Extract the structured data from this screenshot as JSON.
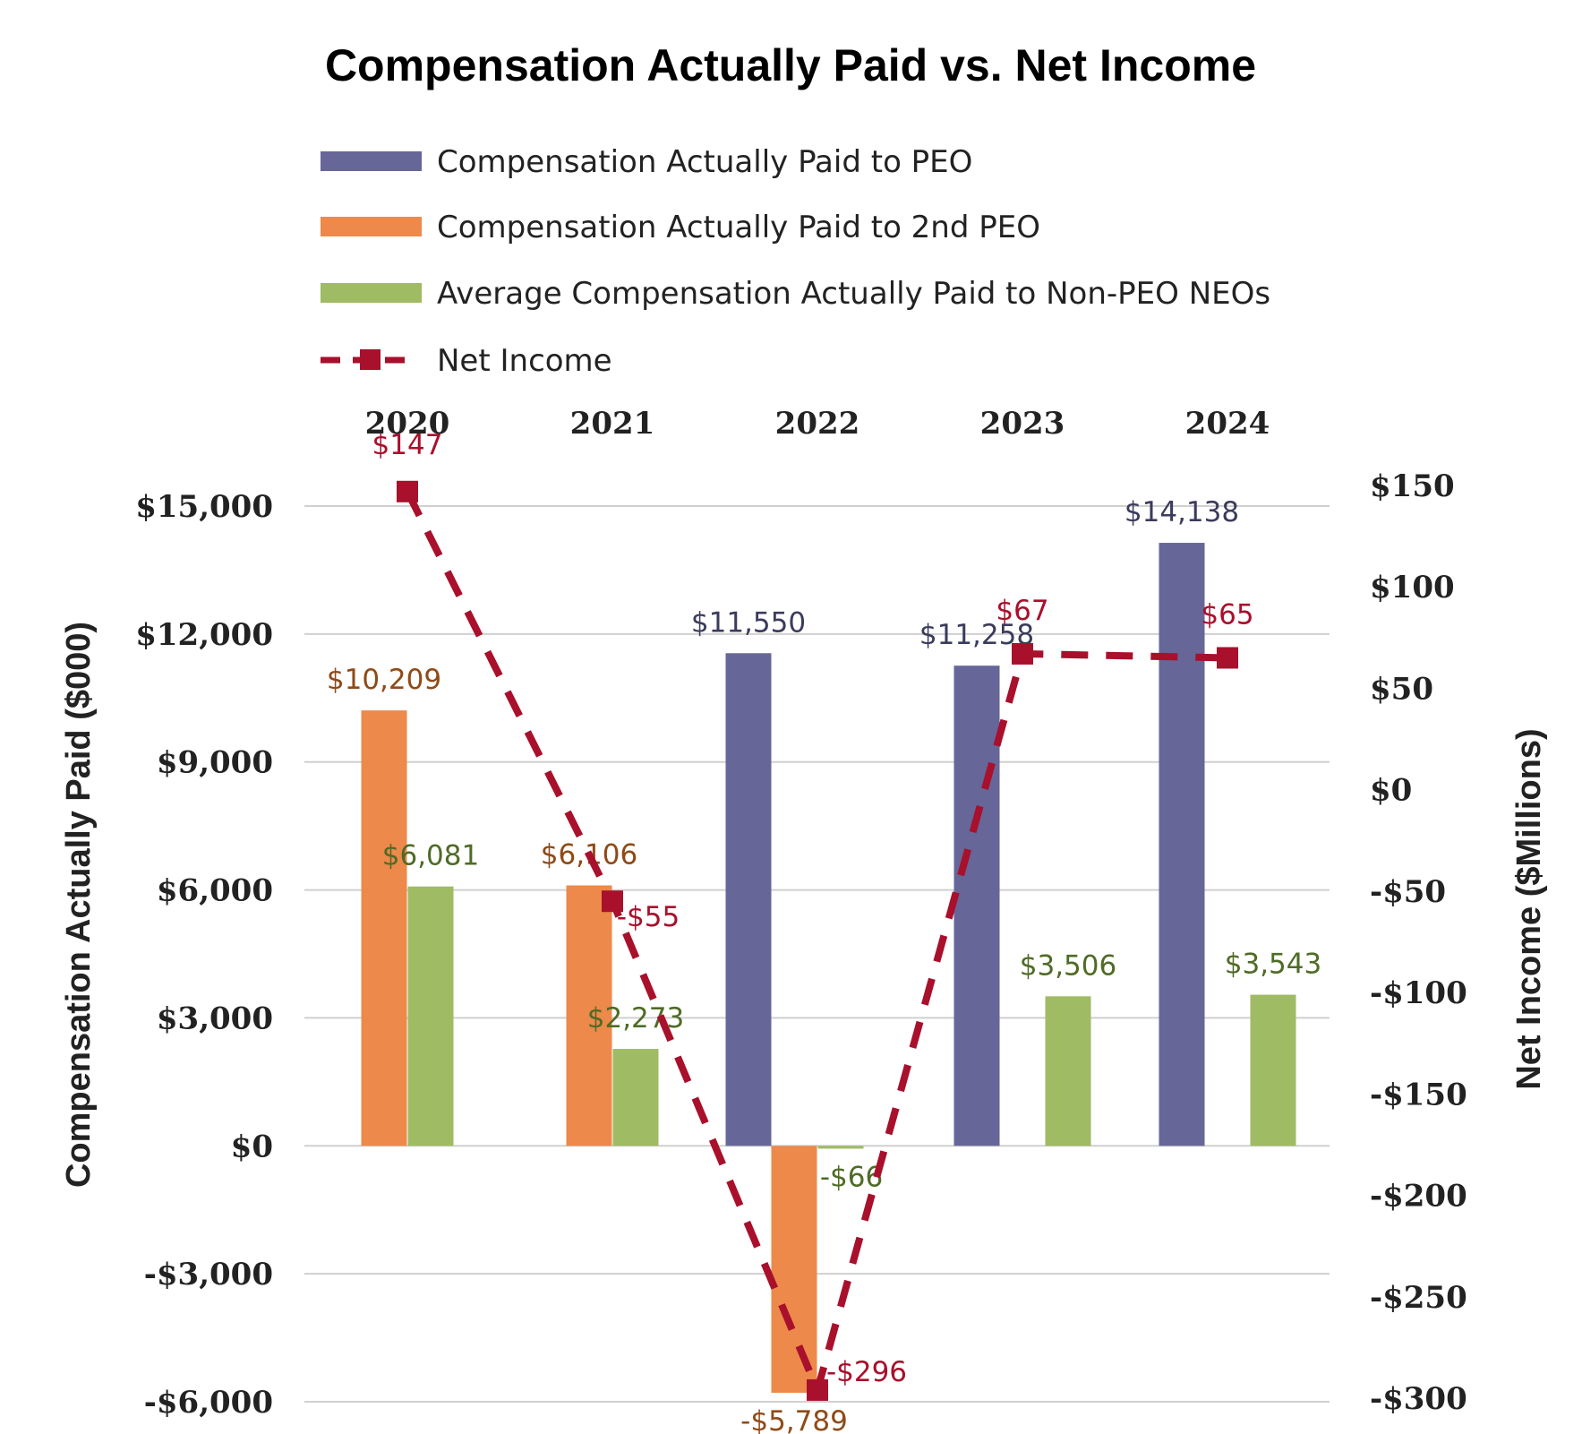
{
  "chart_data": {
    "type": "bar",
    "title": "Compensation Actually Paid vs. Net Income",
    "categories": [
      "2020",
      "2021",
      "2022",
      "2023",
      "2024"
    ],
    "ylabel_left": "Compensation Actually Paid ($000)",
    "ylabel_right": "Net Income ($Millions)",
    "ylim_left": [
      -6000,
      15000
    ],
    "ylim_right": [
      -300,
      150
    ],
    "yticks_left": [
      15000,
      12000,
      9000,
      6000,
      3000,
      0,
      -3000,
      -6000
    ],
    "yticks_left_labels": [
      "$15,000",
      "$12,000",
      "$9,000",
      "$6,000",
      "$3,000",
      "$0",
      "-$3,000",
      "-$6,000"
    ],
    "yticks_right": [
      150,
      100,
      50,
      0,
      -50,
      -100,
      -150,
      -200,
      -250,
      -300
    ],
    "yticks_right_labels": [
      "$150",
      "$100",
      "$50",
      "$0",
      "-$50",
      "-$100",
      "-$150",
      "-$200",
      "-$250",
      "-$300"
    ],
    "grid": true,
    "legend_position": "top",
    "series": [
      {
        "name": "Compensation Actually Paid to PEO",
        "kind": "bar",
        "axis": "left",
        "color": "#666699",
        "label_color": "#3b3b5c",
        "values": [
          null,
          null,
          11550,
          11258,
          14138
        ],
        "labels": [
          null,
          null,
          "$11,550",
          "$11,258",
          "$14,138"
        ]
      },
      {
        "name": "Compensation Actually Paid to 2nd PEO",
        "kind": "bar",
        "axis": "left",
        "color": "#ed894a",
        "label_color": "#8f4a17",
        "values": [
          10209,
          6106,
          -5789,
          null,
          null
        ],
        "labels": [
          "$10,209",
          "$6,106",
          "-$5,789",
          null,
          null
        ]
      },
      {
        "name": "Average Compensation Actually Paid to Non-PEO NEOs",
        "kind": "bar",
        "axis": "left",
        "color": "#9fbb63",
        "label_color": "#4f6b26",
        "values": [
          6081,
          2273,
          -66,
          3506,
          3543
        ],
        "labels": [
          "$6,081",
          "$2,273",
          "-$66",
          "$3,506",
          "$3,543"
        ]
      },
      {
        "name": "Net Income",
        "kind": "line",
        "axis": "right",
        "color": "#a8102c",
        "label_color": "#a8102c",
        "values": [
          147,
          -55,
          -296,
          67,
          65
        ],
        "labels": [
          "$147",
          "-$55",
          "-$296",
          "$67",
          "$65"
        ]
      }
    ]
  }
}
